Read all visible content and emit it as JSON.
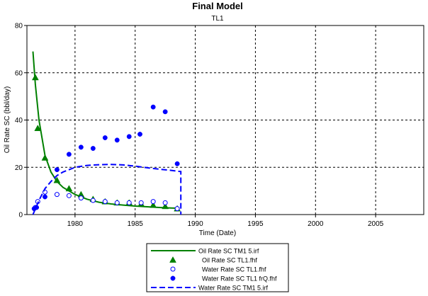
{
  "chart_data": {
    "type": "line",
    "title": "Final Model",
    "subtitle": "TL1",
    "xlabel": "Time (Date)",
    "ylabel": "Oil Rate SC (bbl/day)",
    "xlim": [
      1976,
      2009
    ],
    "ylim": [
      0,
      80
    ],
    "xticks": [
      1980,
      1985,
      1990,
      1995,
      2000,
      2005
    ],
    "yticks": [
      0,
      20,
      40,
      60,
      80
    ],
    "grid": true,
    "legend_position": "bottom-center",
    "series": [
      {
        "name": "Oil Rate SC TM1 5.irf",
        "kind": "line",
        "style": "solid",
        "color": "#008000",
        "x": [
          1976.5,
          1976.7,
          1977.0,
          1977.5,
          1978.0,
          1978.5,
          1979.0,
          1980.0,
          1981.0,
          1982.0,
          1983.0,
          1984.0,
          1985.0,
          1986.0,
          1987.0,
          1988.0,
          1988.5
        ],
        "y": [
          69,
          55,
          40,
          25,
          18,
          14,
          11.5,
          8.5,
          6.5,
          5.2,
          4.5,
          4.0,
          3.6,
          3.3,
          3.0,
          2.8,
          2.7
        ]
      },
      {
        "name": "Oil Rate SC TL1.fhf",
        "kind": "scatter",
        "marker": "filled-triangle",
        "color": "#008000",
        "x": [
          1976.7,
          1976.9,
          1977.5,
          1978.5,
          1979.5,
          1980.5,
          1981.5,
          1982.5,
          1983.5,
          1984.5,
          1985.5,
          1986.5,
          1987.5,
          1988.5
        ],
        "y": [
          58,
          36.5,
          24,
          14.5,
          11,
          8.5,
          6.5,
          5.5,
          5,
          5,
          4.5,
          4,
          3.5,
          2.5
        ]
      },
      {
        "name": "Water Rate SC TL1.fhf",
        "kind": "scatter",
        "marker": "open-circle",
        "color": "#0000ff",
        "x": [
          1976.7,
          1976.9,
          1977.5,
          1978.5,
          1979.5,
          1980.5,
          1981.5,
          1982.5,
          1983.5,
          1984.5,
          1985.5,
          1986.5,
          1987.5,
          1988.5
        ],
        "y": [
          3,
          5.5,
          9.5,
          8.5,
          8,
          7,
          6,
          5.5,
          5,
          5,
          5,
          5.5,
          5,
          2.5
        ]
      },
      {
        "name": "Water Rate SC TL1 frQ.fhf",
        "kind": "scatter",
        "marker": "filled-circle",
        "color": "#0000ff",
        "x": [
          1976.6,
          1976.8,
          1977.5,
          1978.5,
          1979.5,
          1980.5,
          1981.5,
          1982.5,
          1983.5,
          1984.5,
          1985.4,
          1986.5,
          1987.5,
          1988.5
        ],
        "y": [
          2.5,
          3,
          7.5,
          19,
          25.5,
          28.5,
          28,
          32.5,
          31.5,
          33,
          34,
          45.5,
          43.5,
          21.5
        ]
      },
      {
        "name": "Water Rate SC TM1 5.irf",
        "kind": "line",
        "style": "dashed",
        "color": "#0000ff",
        "x": [
          1976.5,
          1977.0,
          1977.5,
          1978.0,
          1978.5,
          1979.0,
          1980.0,
          1981.0,
          1982.0,
          1983.0,
          1984.0,
          1985.0,
          1986.0,
          1987.0,
          1988.0,
          1988.8,
          1988.8
        ],
        "y": [
          0,
          6,
          11,
          14,
          16.5,
          18,
          20,
          20.8,
          21.1,
          21.2,
          21,
          20.5,
          19.8,
          19.2,
          18.7,
          18.2,
          0
        ]
      }
    ]
  }
}
